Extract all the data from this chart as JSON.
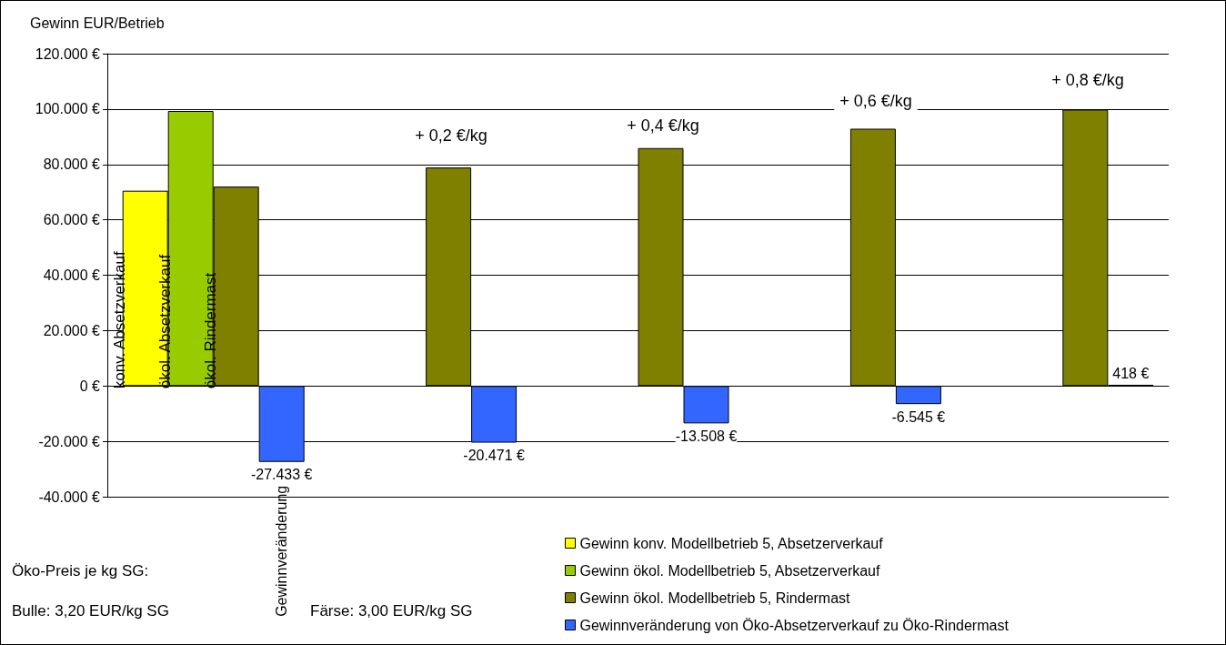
{
  "chart_data": {
    "type": "bar",
    "ylabel": "Gewinn EUR/Betrieb",
    "categories": [
      null,
      null,
      null,
      null,
      null
    ],
    "series": [
      {
        "name": "Gewinn konv. Modellbetrieb 5, Absetzerverkauf",
        "color": "#ffff00",
        "values": [
          70500,
          null,
          null,
          null,
          null
        ],
        "value_labels": [
          "konv. Absetzverkauf",
          null,
          null,
          null,
          null
        ]
      },
      {
        "name": "Gewinn ökol. Modellbetrieb 5, Absetzerverkauf",
        "color": "#99cc00",
        "values": [
          99300,
          null,
          null,
          null,
          null
        ],
        "value_labels": [
          "ökol. Absetzverkauf",
          null,
          null,
          null,
          null
        ]
      },
      {
        "name": "Gewinn ökol. Modellbetrieb 5, Rindermast",
        "color": "#808000",
        "values": [
          72000,
          78900,
          85900,
          92900,
          99800
        ],
        "value_labels": [
          "ökol. Rindermast",
          null,
          null,
          null,
          null
        ]
      },
      {
        "name": "Gewinnveränderung von Öko-Absetzerverkauf zu Öko-Rindermast",
        "color": "#3366ff",
        "values": [
          -27433,
          -20471,
          -13508,
          -6545,
          418
        ],
        "value_labels": [
          "-27.433 €",
          "-20.471 €",
          "-13.508 €",
          "-6.545 €",
          "418 €"
        ]
      }
    ],
    "ylim": [
      -40000,
      120000
    ],
    "yticks": [
      {
        "value": -40000,
        "label": "-40.000 €"
      },
      {
        "value": -20000,
        "label": "-20.000 €"
      },
      {
        "value": 0,
        "label": "0 €"
      },
      {
        "value": 20000,
        "label": "20.000 €"
      },
      {
        "value": 40000,
        "label": "40.000 €"
      },
      {
        "value": 60000,
        "label": "60.000 €"
      },
      {
        "value": 80000,
        "label": "80.000 €"
      },
      {
        "value": 100000,
        "label": "100.000 €"
      },
      {
        "value": 120000,
        "label": "120.000 €"
      }
    ],
    "grid": "y",
    "legend": "bottom right",
    "annotations": [
      {
        "text": "Gewinnveränderung",
        "y": -27433
      },
      "+ 0,2 €/kg",
      "+ 0,4 €/kg",
      "+ 0,6 €/kg",
      "+ 0,8 €/kg",
      "Öko-Preis je kg SG:",
      "Bulle: 3,20 EUR/kg SG",
      "Färse: 3,00 EUR/kg SG"
    ]
  }
}
